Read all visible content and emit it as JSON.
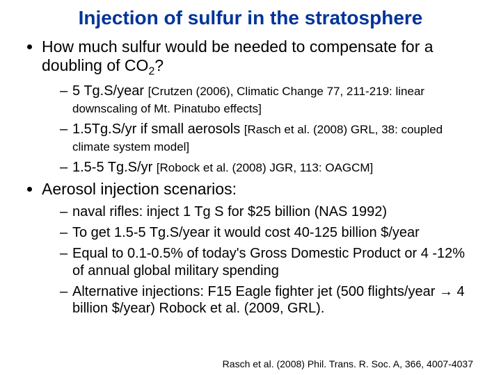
{
  "title": "Injection of sulfur in the stratosphere",
  "bullets": {
    "b1": {
      "text_a": "How much sulfur would be needed to compensate for a doubling of CO",
      "text_sub": "2",
      "text_b": "?",
      "sub": {
        "s1_main": "5 Tg.S/year ",
        "s1_ref": "[Crutzen (2006), Climatic Change 77, 211-219: linear downscaling of Mt. Pinatubo effects]",
        "s2_main": " 1.5Tg.S/yr if small aerosols ",
        "s2_ref": "[Rasch et al. (2008) GRL, 38: coupled climate system model]",
        "s3_main": "1.5-5 Tg.S/yr ",
        "s3_ref": "[Robock et al. (2008) JGR, 113: OAGCM]"
      }
    },
    "b2": {
      "text": "Aerosol injection scenarios:",
      "sub": {
        "s1": "naval rifles: inject 1 Tg S for $25 billion (NAS 1992)",
        "s2": "To get 1.5-5 Tg.S/year it would cost 40-125 billion $/year",
        "s3": "Equal to 0.1-0.5% of today's Gross Domestic Product or 4 -12% of annual global military spending",
        "s4_a": "Alternative injections: F15 Eagle fighter jet (500 flights/year ",
        "s4_arrow": "→",
        "s4_b": " 4 billion $/year) Robock et al. (2009, GRL)."
      }
    }
  },
  "footer": "Rasch et al. (2008) Phil. Trans. R. Soc. A, 366, 4007-4037",
  "colors": {
    "title": "#003399",
    "text": "#000000",
    "background": "#ffffff"
  },
  "fonts": {
    "family": "Arial",
    "title_size_pt": 28,
    "body_size_pt": 23,
    "sub_size_pt": 20,
    "ref_size_pt": 17,
    "footer_size_pt": 14
  }
}
